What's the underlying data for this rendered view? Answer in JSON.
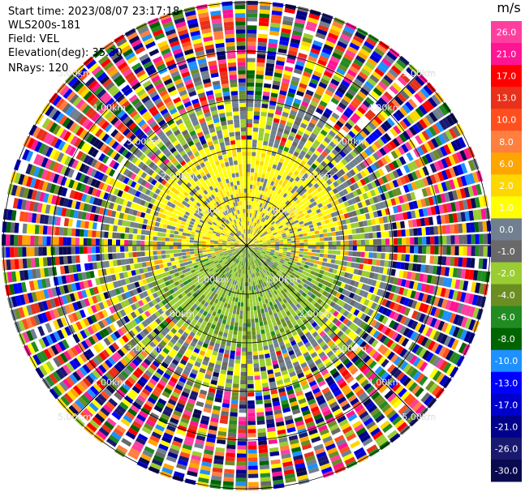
{
  "info": {
    "start_time": "Start time: 2023/08/07 23:17:18",
    "instrument": "WLS200s-181",
    "field": "Field: VEL",
    "elevation": "Elevation(deg): 35.30",
    "nrays": "NRays: 120"
  },
  "chart_data": {
    "type": "heatmap",
    "projection": "polar-ppi",
    "range_rings_km": [
      1,
      2,
      3,
      4,
      5
    ],
    "ring_labels": [
      "1.00km",
      "2.00km",
      "3.00km",
      "4.00km",
      "5.00km"
    ],
    "max_range_km": 5.5,
    "n_rays": 120,
    "colorbar": {
      "unit": "m/s",
      "ticks": [
        "26.0",
        "21.0",
        "17.0",
        "13.0",
        "10.0",
        "8.0",
        "6.0",
        "2.0",
        "1.0",
        "0.0",
        "-1.0",
        "-2.0",
        "-4.0",
        "-6.0",
        "-8.0",
        "-10.0",
        "-13.0",
        "-17.0",
        "-21.0",
        "-26.0",
        "-30.0"
      ],
      "colors": [
        "#ff3fa0",
        "#ff1493",
        "#ff0000",
        "#e8301a",
        "#ff4f1f",
        "#ff7f3f",
        "#ffa500",
        "#ffd700",
        "#ffff00",
        "#708090",
        "#696969",
        "#9acd32",
        "#6b8e23",
        "#228b22",
        "#006400",
        "#1e90ff",
        "#0000ff",
        "#0000cd",
        "#00008b",
        "#191970",
        "#0a0a50"
      ]
    }
  }
}
